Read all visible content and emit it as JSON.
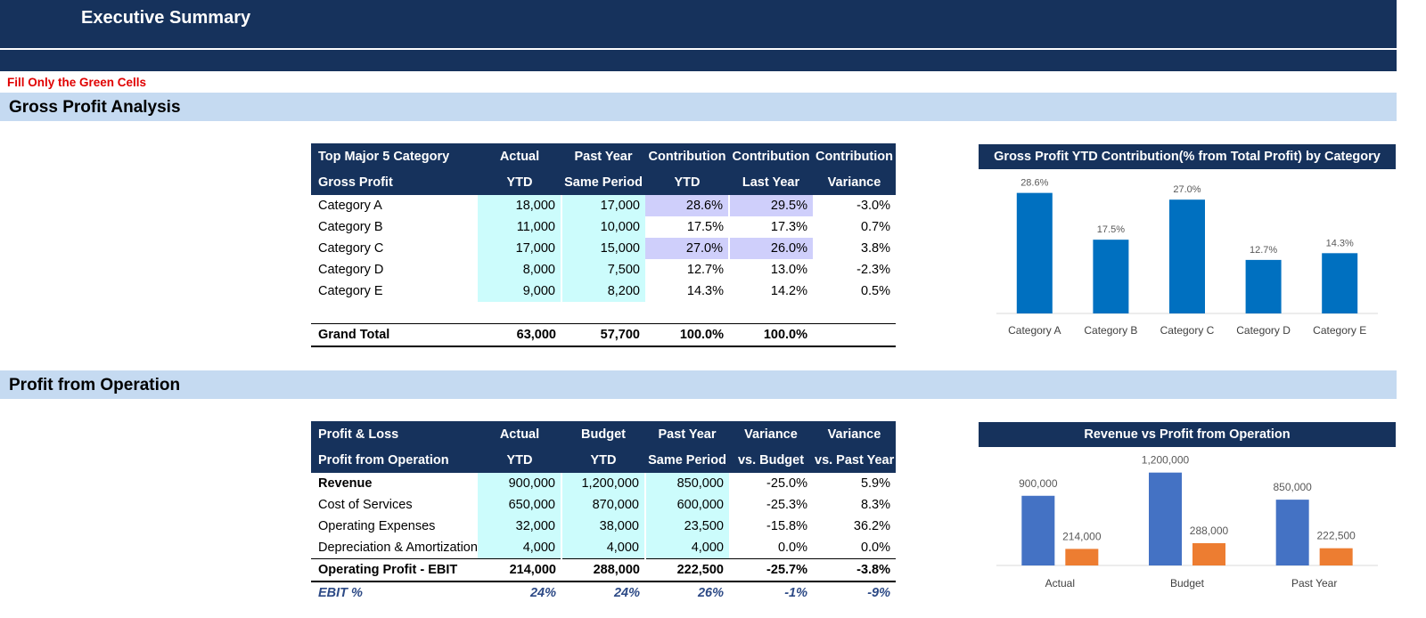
{
  "header": {
    "title": "Executive Summary",
    "note": "Fill Only the Green Cells"
  },
  "sections": {
    "gross_profit": "Gross Profit Analysis",
    "operation": "Profit from Operation"
  },
  "gross_table": {
    "header_row1": [
      "Top Major 5 Category",
      "Actual",
      "Past Year",
      "Contribution",
      "Contribution",
      "Contribution"
    ],
    "header_row2": [
      "Gross Profit",
      "YTD",
      "Same Period",
      "YTD",
      "Last Year",
      "Variance"
    ],
    "rows": [
      {
        "label": "Category A",
        "actual": "18,000",
        "past": "17,000",
        "cytd": "28.6%",
        "cly": "29.5%",
        "var": "-3.0%"
      },
      {
        "label": "Category B",
        "actual": "11,000",
        "past": "10,000",
        "cytd": "17.5%",
        "cly": "17.3%",
        "var": "0.7%"
      },
      {
        "label": "Category C",
        "actual": "17,000",
        "past": "15,000",
        "cytd": "27.0%",
        "cly": "26.0%",
        "var": "3.8%"
      },
      {
        "label": "Category D",
        "actual": "8,000",
        "past": "7,500",
        "cytd": "12.7%",
        "cly": "13.0%",
        "var": "-2.3%"
      },
      {
        "label": "Category E",
        "actual": "9,000",
        "past": "8,200",
        "cytd": "14.3%",
        "cly": "14.2%",
        "var": "0.5%"
      }
    ],
    "total": {
      "label": "Grand Total",
      "actual": "63,000",
      "past": "57,700",
      "cytd": "100.0%",
      "cly": "100.0%",
      "var": ""
    }
  },
  "pl_table": {
    "header_row1": [
      "Profit & Loss",
      "Actual",
      "Budget",
      "Past Year",
      "Variance",
      "Variance"
    ],
    "header_row2": [
      "Profit from Operation",
      "YTD",
      "YTD",
      "Same Period",
      "vs. Budget",
      "vs. Past Year"
    ],
    "rows": [
      {
        "label": "Revenue",
        "actual": "900,000",
        "budget": "1,200,000",
        "past": "850,000",
        "vb": "-25.0%",
        "vp": "5.9%"
      },
      {
        "label": "Cost of Services",
        "actual": "650,000",
        "budget": "870,000",
        "past": "600,000",
        "vb": "-25.3%",
        "vp": "8.3%"
      },
      {
        "label": "Operating Expenses",
        "actual": "32,000",
        "budget": "38,000",
        "past": "23,500",
        "vb": "-15.8%",
        "vp": "36.2%"
      },
      {
        "label": "Depreciation & Amortization",
        "actual": "4,000",
        "budget": "4,000",
        "past": "4,000",
        "vb": "0.0%",
        "vp": "0.0%"
      }
    ],
    "total": {
      "label": "Operating Profit - EBIT",
      "actual": "214,000",
      "budget": "288,000",
      "past": "222,500",
      "vb": "-25.7%",
      "vp": "-3.8%"
    },
    "ebit": {
      "label": "EBIT %",
      "actual": "24%",
      "budget": "24%",
      "past": "26%",
      "vb": "-1%",
      "vp": "-9%"
    }
  },
  "colors": {
    "navy": "#16325c",
    "band": "#c5daf1",
    "input_cell": "#ccfcfc",
    "highlight_cell": "#cfcffb",
    "bar_blue": "#0070c0",
    "rev_blue": "#4472c4",
    "profit_orange": "#ed7d31"
  },
  "chart_data": [
    {
      "type": "bar",
      "title": "Gross Profit YTD Contribution(% from Total Profit) by Category",
      "categories": [
        "Category A",
        "Category B",
        "Category C",
        "Category D",
        "Category E"
      ],
      "values": [
        28.6,
        17.5,
        27.0,
        12.7,
        14.3
      ],
      "data_labels": [
        "28.6%",
        "17.5%",
        "27.0%",
        "12.7%",
        "14.3%"
      ],
      "ylim": [
        0,
        30
      ],
      "grid": false
    },
    {
      "type": "bar",
      "title": "Revenue vs Profit from Operation",
      "categories": [
        "Actual",
        "Budget",
        "Past Year"
      ],
      "series": [
        {
          "values": [
            900000,
            1200000,
            850000
          ],
          "data_labels": [
            "900,000",
            "1,200,000",
            "850,000"
          ],
          "color": "#4472c4"
        },
        {
          "values": [
            214000,
            288000,
            222500
          ],
          "data_labels": [
            "214,000",
            "288,000",
            "222,500"
          ],
          "color": "#ed7d31"
        }
      ],
      "ylim": [
        0,
        1300000
      ],
      "grid": false
    }
  ]
}
